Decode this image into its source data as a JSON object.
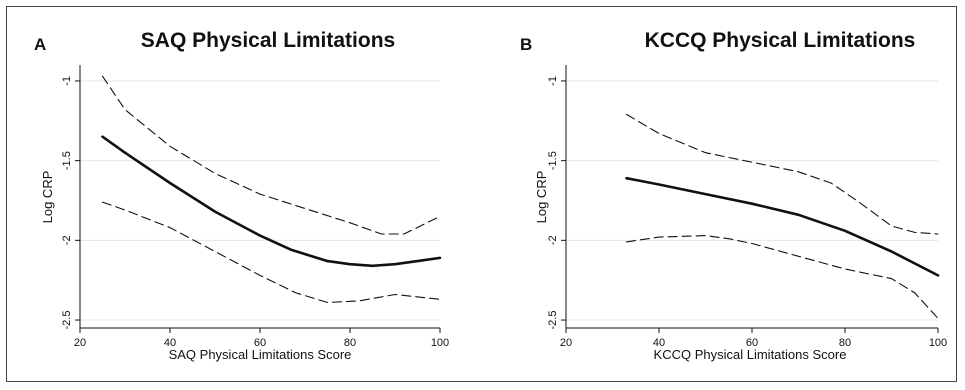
{
  "chart_data": [
    {
      "type": "line",
      "panel": "A",
      "title": "SAQ Physical Limitations",
      "xlabel": "SAQ Physical Limitations Score",
      "ylabel": "Log CRP",
      "xlim": [
        20,
        100
      ],
      "ylim": [
        -2.55,
        -0.9
      ],
      "xticks": [
        20,
        40,
        60,
        80,
        100
      ],
      "yticks": [
        -1,
        -1.5,
        -2,
        -2.5
      ],
      "grid": true,
      "series": [
        {
          "role": "fit",
          "style": "solid",
          "x": [
            25,
            30,
            40,
            50,
            60,
            67,
            75,
            80,
            85,
            90,
            95,
            100
          ],
          "y": [
            -1.35,
            -1.45,
            -1.64,
            -1.82,
            -1.97,
            -2.06,
            -2.13,
            -2.15,
            -2.16,
            -2.15,
            -2.13,
            -2.11
          ]
        },
        {
          "role": "upper",
          "style": "dashed",
          "x": [
            25,
            30,
            40,
            50,
            60,
            70,
            80,
            87,
            92,
            100
          ],
          "y": [
            -0.97,
            -1.18,
            -1.41,
            -1.58,
            -1.71,
            -1.8,
            -1.89,
            -1.96,
            -1.96,
            -1.85
          ]
        },
        {
          "role": "lower",
          "style": "dashed",
          "x": [
            25,
            30,
            40,
            50,
            60,
            68,
            75,
            82,
            90,
            100
          ],
          "y": [
            -1.76,
            -1.81,
            -1.92,
            -2.07,
            -2.22,
            -2.33,
            -2.39,
            -2.38,
            -2.34,
            -2.37
          ]
        }
      ]
    },
    {
      "type": "line",
      "panel": "B",
      "title": "KCCQ Physical Limitations",
      "xlabel": "KCCQ Physical Limitations Score",
      "ylabel": "Log CRP",
      "xlim": [
        20,
        100
      ],
      "ylim": [
        -2.55,
        -0.9
      ],
      "xticks": [
        20,
        40,
        60,
        80,
        100
      ],
      "yticks": [
        -1,
        -1.5,
        -2,
        -2.5
      ],
      "grid": true,
      "series": [
        {
          "role": "fit",
          "style": "solid",
          "x": [
            33,
            40,
            50,
            60,
            70,
            80,
            90,
            100
          ],
          "y": [
            -1.61,
            -1.65,
            -1.71,
            -1.77,
            -1.84,
            -1.94,
            -2.07,
            -2.22
          ]
        },
        {
          "role": "upper",
          "style": "dashed",
          "x": [
            33,
            40,
            50,
            60,
            70,
            77,
            83,
            90,
            95,
            100
          ],
          "y": [
            -1.21,
            -1.33,
            -1.45,
            -1.51,
            -1.57,
            -1.64,
            -1.76,
            -1.91,
            -1.95,
            -1.96
          ]
        },
        {
          "role": "lower",
          "style": "dashed",
          "x": [
            33,
            40,
            50,
            55,
            60,
            70,
            80,
            90,
            95,
            100
          ],
          "y": [
            -2.01,
            -1.98,
            -1.97,
            -1.99,
            -2.02,
            -2.1,
            -2.18,
            -2.24,
            -2.33,
            -2.49
          ]
        }
      ]
    }
  ]
}
